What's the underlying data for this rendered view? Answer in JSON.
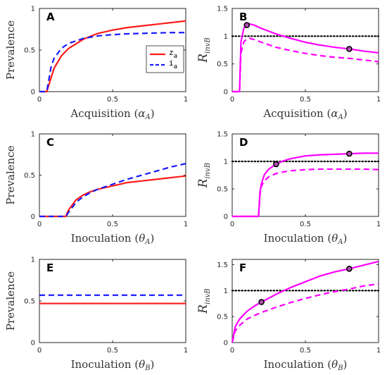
{
  "colors": {
    "red": "#ff1a1a",
    "blue": "#1a1aff",
    "magenta": "#ff00ff",
    "black": "#000000"
  },
  "chart_data": [
    {
      "id": "A",
      "letter": "A",
      "type": "line",
      "xlabel": "Acquisition",
      "xsym": "α",
      "xsub": "A",
      "ylabel": "Prevalence",
      "xlim": [
        0,
        1
      ],
      "ylim": [
        0,
        1
      ],
      "xticks": [
        0,
        0.5,
        1
      ],
      "yticks": [
        0,
        0.5,
        1
      ],
      "ytick_labels": [
        "0",
        "0.5",
        "1"
      ],
      "legend": {
        "placement": "middle-right",
        "entries": [
          "z",
          "i"
        ],
        "subscripts": [
          "a",
          "a"
        ]
      },
      "series": [
        {
          "name": "z_a",
          "color": "red",
          "style": "solid",
          "x": [
            0,
            0.05,
            0.1,
            0.15,
            0.2,
            0.3,
            0.4,
            0.5,
            0.6,
            0.7,
            0.8,
            0.9,
            1.0
          ],
          "y": [
            0,
            0,
            0.28,
            0.43,
            0.52,
            0.63,
            0.7,
            0.74,
            0.77,
            0.79,
            0.81,
            0.83,
            0.85
          ]
        },
        {
          "name": "i_a",
          "color": "blue",
          "style": "dashed",
          "x": [
            0,
            0.05,
            0.08,
            0.1,
            0.15,
            0.2,
            0.3,
            0.4,
            0.5,
            0.6,
            0.7,
            0.8,
            0.9,
            1.0
          ],
          "y": [
            0,
            0,
            0.3,
            0.4,
            0.52,
            0.58,
            0.64,
            0.67,
            0.685,
            0.695,
            0.7,
            0.705,
            0.71,
            0.71
          ]
        }
      ],
      "markers": [],
      "hline": null
    },
    {
      "id": "B",
      "letter": "B",
      "type": "line",
      "xlabel": "Acquisition",
      "xsym": "α",
      "xsub": "A",
      "ylabel": "R",
      "ysub": "invB",
      "xlim": [
        0,
        1
      ],
      "ylim": [
        0,
        1.5
      ],
      "xticks": [
        0,
        0.5,
        1
      ],
      "yticks": [
        0,
        0.5,
        1,
        1.5
      ],
      "ytick_labels": [
        "0",
        "0.5",
        "1",
        "1.5"
      ],
      "series": [
        {
          "name": "solid",
          "color": "magenta",
          "style": "solid",
          "x": [
            0,
            0.05,
            0.06,
            0.08,
            0.1,
            0.12,
            0.15,
            0.2,
            0.3,
            0.4,
            0.5,
            0.6,
            0.7,
            0.8,
            0.9,
            1.0
          ],
          "y": [
            0,
            0,
            0.9,
            1.15,
            1.2,
            1.22,
            1.2,
            1.14,
            1.04,
            0.96,
            0.89,
            0.84,
            0.8,
            0.77,
            0.73,
            0.7
          ]
        },
        {
          "name": "dashed",
          "color": "magenta",
          "style": "dashed",
          "x": [
            0,
            0.05,
            0.06,
            0.08,
            0.1,
            0.12,
            0.15,
            0.2,
            0.3,
            0.4,
            0.5,
            0.6,
            0.7,
            0.8,
            0.9,
            1.0
          ],
          "y": [
            0,
            0,
            0.7,
            0.9,
            0.95,
            0.96,
            0.94,
            0.89,
            0.8,
            0.74,
            0.69,
            0.65,
            0.62,
            0.6,
            0.57,
            0.54
          ]
        }
      ],
      "markers": [
        {
          "x": 0.1,
          "y": 1.2
        },
        {
          "x": 0.8,
          "y": 0.77
        }
      ],
      "hline": 1
    },
    {
      "id": "C",
      "letter": "C",
      "type": "line",
      "xlabel": "Inoculation",
      "xsym": "θ",
      "xsub": "A",
      "ylabel": "Prevalence",
      "xlim": [
        0,
        1
      ],
      "ylim": [
        0,
        1
      ],
      "xticks": [
        0,
        0.5,
        1
      ],
      "yticks": [
        0,
        0.5,
        1
      ],
      "ytick_labels": [
        "0",
        "0.5",
        "1"
      ],
      "series": [
        {
          "name": "z_a",
          "color": "red",
          "style": "solid",
          "x": [
            0,
            0.18,
            0.2,
            0.25,
            0.3,
            0.35,
            0.4,
            0.5,
            0.6,
            0.7,
            0.8,
            0.9,
            1.0
          ],
          "y": [
            0,
            0,
            0.08,
            0.2,
            0.26,
            0.3,
            0.33,
            0.37,
            0.41,
            0.43,
            0.45,
            0.47,
            0.49
          ]
        },
        {
          "name": "i_a",
          "color": "blue",
          "style": "dashed",
          "x": [
            0,
            0.18,
            0.2,
            0.25,
            0.3,
            0.35,
            0.4,
            0.5,
            0.6,
            0.7,
            0.8,
            0.9,
            1.0
          ],
          "y": [
            0,
            0,
            0.05,
            0.17,
            0.24,
            0.29,
            0.33,
            0.39,
            0.45,
            0.5,
            0.55,
            0.6,
            0.64
          ]
        }
      ],
      "markers": [],
      "hline": null
    },
    {
      "id": "D",
      "letter": "D",
      "type": "line",
      "xlabel": "Inoculation",
      "xsym": "θ",
      "xsub": "A",
      "ylabel": "R",
      "ysub": "invB",
      "xlim": [
        0,
        1
      ],
      "ylim": [
        0,
        1.5
      ],
      "xticks": [
        0,
        0.5,
        1
      ],
      "yticks": [
        0,
        0.5,
        1,
        1.5
      ],
      "ytick_labels": [
        "0",
        "0.5",
        "1",
        "1.5"
      ],
      "series": [
        {
          "name": "solid",
          "color": "magenta",
          "style": "solid",
          "x": [
            0,
            0.18,
            0.19,
            0.2,
            0.22,
            0.25,
            0.3,
            0.35,
            0.4,
            0.5,
            0.6,
            0.7,
            0.8,
            0.9,
            1.0
          ],
          "y": [
            0,
            0,
            0.45,
            0.6,
            0.76,
            0.86,
            0.95,
            1.01,
            1.05,
            1.1,
            1.12,
            1.13,
            1.14,
            1.15,
            1.15
          ]
        },
        {
          "name": "dashed",
          "color": "magenta",
          "style": "dashed",
          "x": [
            0,
            0.18,
            0.19,
            0.2,
            0.22,
            0.25,
            0.3,
            0.35,
            0.4,
            0.5,
            0.6,
            0.7,
            0.8,
            0.9,
            1.0
          ],
          "y": [
            0,
            0,
            0.4,
            0.55,
            0.65,
            0.72,
            0.78,
            0.81,
            0.83,
            0.85,
            0.86,
            0.86,
            0.86,
            0.86,
            0.85
          ]
        }
      ],
      "markers": [
        {
          "x": 0.3,
          "y": 0.95
        },
        {
          "x": 0.8,
          "y": 1.14
        }
      ],
      "hline": 1
    },
    {
      "id": "E",
      "letter": "E",
      "type": "line",
      "xlabel": "Inoculation",
      "xsym": "θ",
      "xsub": "B",
      "ylabel": "Prevalence",
      "xlim": [
        0,
        1
      ],
      "ylim": [
        0,
        1
      ],
      "xticks": [
        0,
        0.5,
        1
      ],
      "yticks": [
        0,
        0.5,
        1
      ],
      "ytick_labels": [
        "0",
        "0.5",
        "1"
      ],
      "series": [
        {
          "name": "z_a",
          "color": "red",
          "style": "solid",
          "x": [
            0,
            1
          ],
          "y": [
            0.47,
            0.47
          ]
        },
        {
          "name": "i_a",
          "color": "blue",
          "style": "dashed",
          "x": [
            0,
            1
          ],
          "y": [
            0.57,
            0.57
          ]
        }
      ],
      "markers": [],
      "hline": null
    },
    {
      "id": "F",
      "letter": "F",
      "type": "line",
      "xlabel": "Inoculation",
      "xsym": "θ",
      "xsub": "B",
      "ylabel": "R",
      "ysub": "invB",
      "xlim": [
        0,
        1
      ],
      "ylim": [
        0,
        1.6
      ],
      "xticks": [
        0,
        0.5,
        1
      ],
      "yticks": [
        0,
        0.5,
        1,
        1.5
      ],
      "ytick_labels": [
        "0",
        "0.5",
        "1",
        "1.5"
      ],
      "series": [
        {
          "name": "solid",
          "color": "magenta",
          "style": "solid",
          "x": [
            0,
            0.02,
            0.05,
            0.1,
            0.15,
            0.2,
            0.3,
            0.4,
            0.5,
            0.6,
            0.7,
            0.8,
            0.9,
            1.0
          ],
          "y": [
            0,
            0.3,
            0.45,
            0.6,
            0.7,
            0.78,
            0.93,
            1.06,
            1.17,
            1.28,
            1.36,
            1.42,
            1.49,
            1.56
          ]
        },
        {
          "name": "dashed",
          "color": "magenta",
          "style": "dashed",
          "x": [
            0,
            0.02,
            0.05,
            0.1,
            0.15,
            0.2,
            0.3,
            0.4,
            0.5,
            0.6,
            0.7,
            0.8,
            0.9,
            1.0
          ],
          "y": [
            0,
            0.22,
            0.33,
            0.45,
            0.52,
            0.58,
            0.68,
            0.77,
            0.85,
            0.92,
            0.98,
            1.03,
            1.09,
            1.13
          ]
        }
      ],
      "markers": [
        {
          "x": 0.2,
          "y": 0.78
        },
        {
          "x": 0.8,
          "y": 1.42
        }
      ],
      "hline": 1
    }
  ]
}
